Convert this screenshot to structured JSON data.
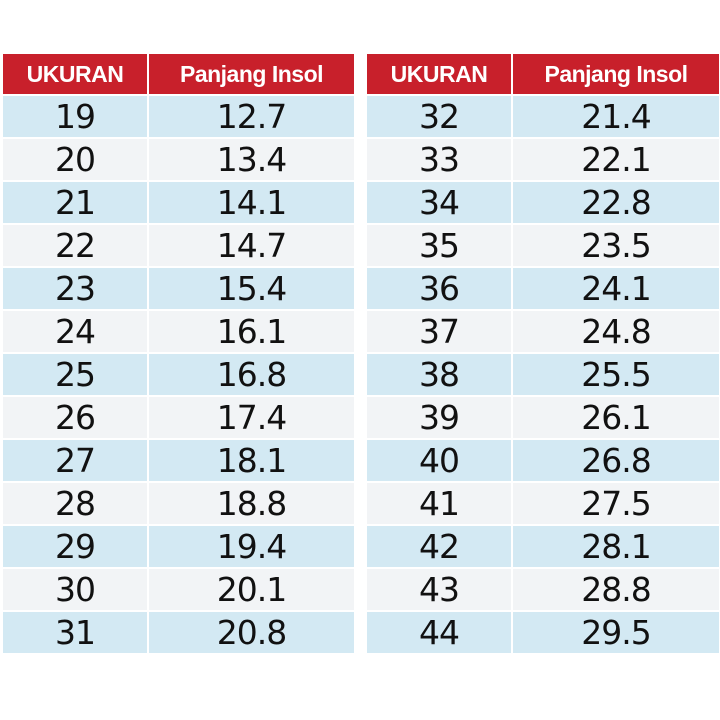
{
  "headers": {
    "size": "UKURAN",
    "insole": "Panjang Insol"
  },
  "left_table": {
    "rows": [
      {
        "size": "19",
        "insole": "12.7"
      },
      {
        "size": "20",
        "insole": "13.4"
      },
      {
        "size": "21",
        "insole": "14.1"
      },
      {
        "size": "22",
        "insole": "14.7"
      },
      {
        "size": "23",
        "insole": "15.4"
      },
      {
        "size": "24",
        "insole": "16.1"
      },
      {
        "size": "25",
        "insole": "16.8"
      },
      {
        "size": "26",
        "insole": "17.4"
      },
      {
        "size": "27",
        "insole": "18.1"
      },
      {
        "size": "28",
        "insole": "18.8"
      },
      {
        "size": "29",
        "insole": "19.4"
      },
      {
        "size": "30",
        "insole": "20.1"
      },
      {
        "size": "31",
        "insole": "20.8"
      }
    ]
  },
  "right_table": {
    "rows": [
      {
        "size": "32",
        "insole": "21.4"
      },
      {
        "size": "33",
        "insole": "22.1"
      },
      {
        "size": "34",
        "insole": "22.8"
      },
      {
        "size": "35",
        "insole": "23.5"
      },
      {
        "size": "36",
        "insole": "24.1"
      },
      {
        "size": "37",
        "insole": "24.8"
      },
      {
        "size": "38",
        "insole": "25.5"
      },
      {
        "size": "39",
        "insole": "26.1"
      },
      {
        "size": "40",
        "insole": "26.8"
      },
      {
        "size": "41",
        "insole": "27.5"
      },
      {
        "size": "42",
        "insole": "28.1"
      },
      {
        "size": "43",
        "insole": "28.8"
      },
      {
        "size": "44",
        "insole": "29.5"
      }
    ]
  },
  "colors": {
    "header_background": "#c8202b",
    "header_text": "#ffffff",
    "row_odd": "#d3e9f3",
    "row_even": "#f2f4f6",
    "cell_text": "#111111"
  }
}
